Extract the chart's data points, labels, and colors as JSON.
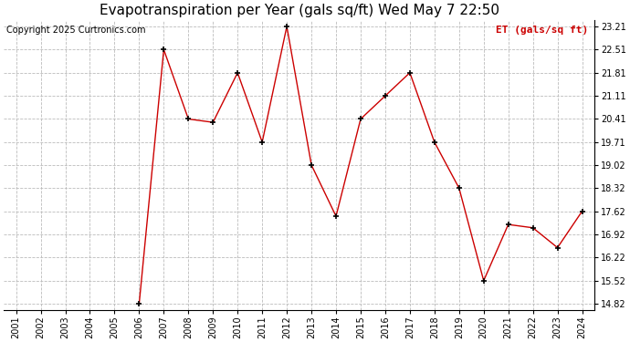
{
  "title": "Evapotranspiration per Year (gals sq/ft) Wed May 7 22:50",
  "copyright": "Copyright 2025 Curtronics.com",
  "legend_label": "ET (gals/sq ft)",
  "years": [
    2001,
    2002,
    2003,
    2004,
    2005,
    2006,
    2007,
    2008,
    2009,
    2010,
    2011,
    2012,
    2013,
    2014,
    2015,
    2016,
    2017,
    2018,
    2019,
    2020,
    2021,
    2022,
    2023,
    2024
  ],
  "values": [
    null,
    null,
    null,
    null,
    null,
    14.82,
    22.51,
    20.41,
    20.31,
    21.81,
    19.71,
    23.21,
    19.02,
    17.47,
    20.41,
    21.11,
    21.81,
    19.71,
    18.32,
    15.52,
    17.22,
    17.12,
    16.52,
    17.62
  ],
  "line_color": "#cc0000",
  "marker": "+",
  "marker_color": "#000000",
  "grid_color": "#bbbbbb",
  "bg_color": "#ffffff",
  "yticks": [
    14.82,
    15.52,
    16.22,
    16.92,
    17.62,
    18.32,
    19.02,
    19.71,
    20.41,
    21.11,
    21.81,
    22.51,
    23.21
  ],
  "ylim": [
    14.62,
    23.41
  ],
  "xlim": [
    2000.5,
    2024.5
  ],
  "title_fontsize": 11,
  "copyright_fontsize": 7,
  "legend_fontsize": 8,
  "tick_fontsize": 7
}
